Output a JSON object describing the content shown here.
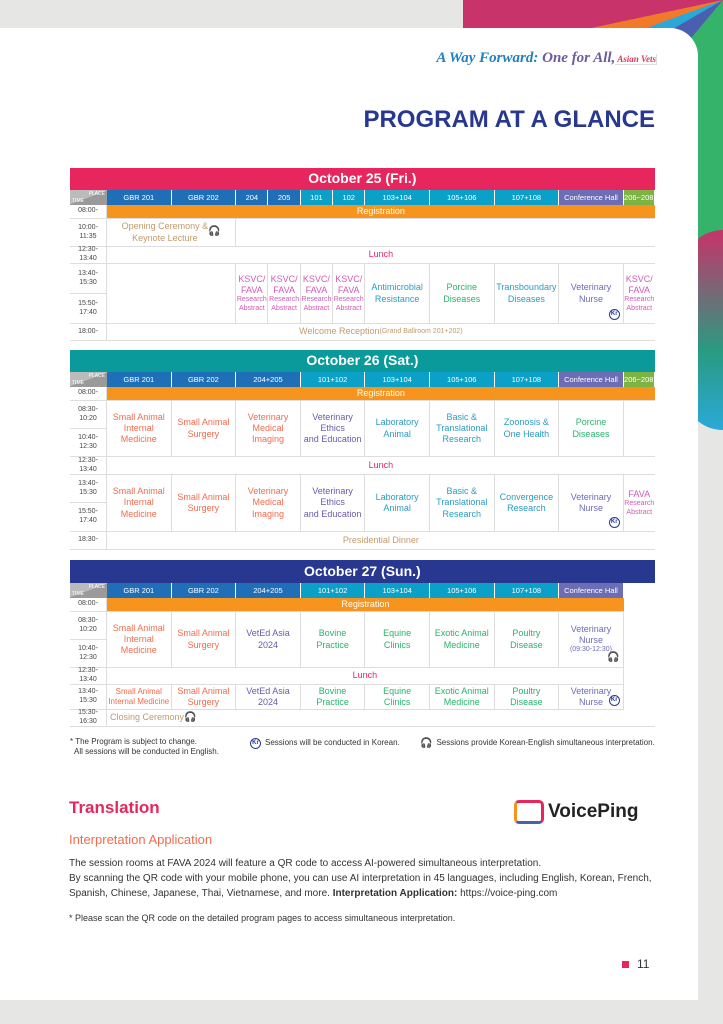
{
  "tagline": {
    "a": "A Way Forward:",
    "b": " One for All,",
    "c": " Asian Vets"
  },
  "title": "PROGRAM AT A GLANCE",
  "corner": {
    "place": "PLACE",
    "time": "TIME"
  },
  "common": {
    "registration": "Registration",
    "lunch": "Lunch",
    "kr": "Kr"
  },
  "days": [
    {
      "title": "October 25 (Fri.)",
      "rooms": [
        "GBR 201",
        "GBR 202",
        "204",
        "205",
        "101",
        "102",
        "103+104",
        "105+106",
        "107+108",
        "Conference Hall",
        "206~208"
      ],
      "times": [
        "08:00-",
        "10:00-11:35",
        "12:30-13:40",
        "13:40-15:30",
        "15:50-17:40",
        "18:00-"
      ],
      "opening": "Opening Ceremony &\nKeynote Lecture",
      "ksvc": "KSVC/\nFAVA",
      "ra": "Research\nAbstract",
      "sessions": [
        "Antimicrobial\nResistance",
        "Porcine\nDiseases",
        "Transboundary\nDiseases",
        "Veterinary\nNurse"
      ],
      "evening": "Welcome Reception",
      "evening_note": " (Grand Ballroom 201+202)"
    },
    {
      "title": "October 26 (Sat.)",
      "rooms": [
        "GBR 201",
        "GBR 202",
        "204+205",
        "101+102",
        "103+104",
        "105+106",
        "107+108",
        "Conference Hall",
        "206~208"
      ],
      "times": [
        "08:00-",
        "08:30-10:20",
        "10:40-12:30",
        "12:30-13:40",
        "13:40-15:30",
        "15:50-17:40",
        "18:30-"
      ],
      "am": [
        "Small Animal\nInternal\nMedicine",
        "Small Animal\nSurgery",
        "Veterinary\nMedical\nImaging",
        "Veterinary\nEthics\nand Education",
        "Laboratory\nAnimal",
        "Basic &\nTranslational\nResearch",
        "Zoonosis &\nOne Health",
        "Porcine\nDiseases"
      ],
      "pm": [
        "Small Animal\nInternal\nMedicine",
        "Small Animal\nSurgery",
        "Veterinary\nMedical\nImaging",
        "Veterinary\nEthics\nand Education",
        "Laboratory\nAnimal",
        "Basic &\nTranslational\nResearch",
        "Convergence\nResearch",
        "Veterinary\nNurse"
      ],
      "fava": "FAVA",
      "ra": "Research\nAbstract",
      "evening": "Presidential Dinner"
    },
    {
      "title": "October 27 (Sun.)",
      "rooms": [
        "GBR 201",
        "GBR 202",
        "204+205",
        "101+102",
        "103+104",
        "105+106",
        "107+108",
        "Conference Hall"
      ],
      "times": [
        "08:00-",
        "08:30-10:20",
        "10:40-12:30",
        "12:30-13:40",
        "13:40-15:30",
        "15:30-16:30"
      ],
      "am": [
        "Small Animal\nInternal\nMedicine",
        "Small Animal\nSurgery",
        "VetEd Asia\n2024",
        "Bovine\nPractice",
        "Equine\nClinics",
        "Exotic Animal\nMedicine",
        "Poultry\nDisease",
        "Veterinary\nNurse"
      ],
      "am_nurse_time": "(09:30-12:30)",
      "pm": [
        "Small Animal\nInternal Medicine",
        "Small Animal\nSurgery",
        "VetEd Asia\n2024",
        "Bovine\nPractice",
        "Equine\nClinics",
        "Exotic Animal\nMedicine",
        "Poultry\nDisease",
        "Veterinary\nNurse"
      ],
      "closing": "Closing Ceremony"
    }
  ],
  "footnotes": {
    "change": "* The Program is subject to change.\n  All sessions will be conducted in English.",
    "korean": "Sessions will be conducted in Korean.",
    "interp": "Sessions provide Korean-English simultaneous interpretation."
  },
  "translation": {
    "heading": "Translation",
    "sub": "Interpretation Application",
    "p1": "The session rooms at FAVA 2024 will feature a QR code to access AI-powered simultaneous interpretation.",
    "p2": "By scanning the QR code with your mobile phone, you can use AI interpretation in 45 languages, including English, Korean, French, Spanish, Chinese, Japanese, Thai, Vietnamese, and more. ",
    "app_label": "Interpretation Application:",
    "url": " https://voice-ping.com",
    "note": "* Please scan the QR code on the detailed program pages to access simultaneous interpretation."
  },
  "logo": "VoicePing",
  "page_number": "11",
  "colors": {
    "day1": "#e8265e",
    "day2": "#0a9a9c",
    "day3": "#283891",
    "registration": "#f7941d"
  }
}
